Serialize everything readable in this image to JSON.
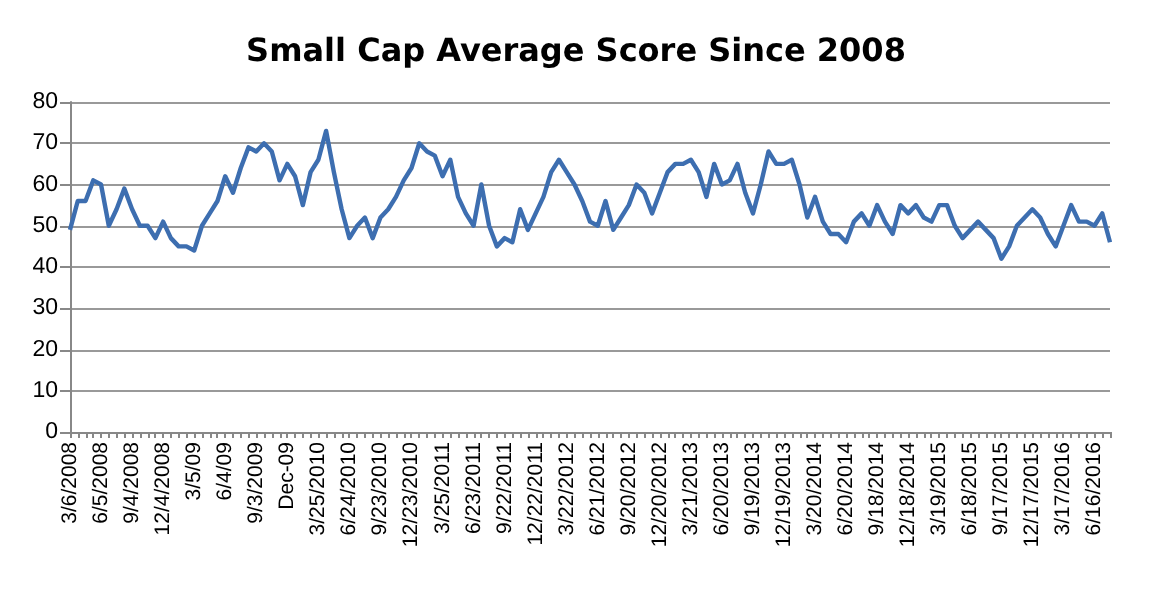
{
  "chart_data": {
    "type": "line",
    "title": "Small Cap Average Score Since 2008",
    "categories": [
      "3/6/2008",
      null,
      null,
      null,
      "6/5/2008",
      null,
      null,
      null,
      "9/4/2008",
      null,
      null,
      null,
      "12/4/2008",
      null,
      null,
      null,
      "3/5/09",
      null,
      null,
      null,
      "6/4/09",
      null,
      null,
      null,
      "9/3/2009",
      null,
      null,
      null,
      "Dec-09",
      null,
      null,
      null,
      "3/25/2010",
      null,
      null,
      null,
      "6/24/2010",
      null,
      null,
      null,
      "9/23/2010",
      null,
      null,
      null,
      "12/23/2010",
      null,
      null,
      null,
      "3/25/2011",
      null,
      null,
      null,
      "6/23/2011",
      null,
      null,
      null,
      "9/22/2011",
      null,
      null,
      null,
      "12/22/2011",
      null,
      null,
      null,
      "3/22/2012",
      null,
      null,
      null,
      "6/21/2012",
      null,
      null,
      null,
      "9/20/2012",
      null,
      null,
      null,
      "12/20/2012",
      null,
      null,
      null,
      "3/21/2013",
      null,
      null,
      null,
      "6/20/2013",
      null,
      null,
      null,
      "9/19/2013",
      null,
      null,
      null,
      "12/19/2013",
      null,
      null,
      null,
      "3/20/2014",
      null,
      null,
      null,
      "6/20/2014",
      null,
      null,
      null,
      "9/18/2014",
      null,
      null,
      null,
      "12/18/2014",
      null,
      null,
      null,
      "3/19/2015",
      null,
      null,
      null,
      "6/18/2015",
      null,
      null,
      null,
      "9/17/2015",
      null,
      null,
      null,
      "12/17/2015",
      null,
      null,
      null,
      "3/17/2016",
      null,
      null,
      null,
      "6/16/2016",
      null,
      null
    ],
    "series": [
      {
        "color": "#3d6eb0",
        "values": [
          49,
          56,
          56,
          61,
          60,
          50,
          54,
          59,
          54,
          50,
          50,
          47,
          51,
          47,
          45,
          45,
          44,
          50,
          53,
          56,
          62,
          58,
          64,
          69,
          68,
          70,
          68,
          61,
          65,
          62,
          55,
          63,
          66,
          73,
          63,
          54,
          47,
          50,
          52,
          47,
          52,
          54,
          57,
          61,
          64,
          70,
          68,
          67,
          62,
          66,
          57,
          53,
          50,
          60,
          50,
          45,
          47,
          46,
          54,
          49,
          53,
          57,
          63,
          66,
          63,
          60,
          56,
          51,
          50,
          56,
          49,
          52,
          55,
          60,
          58,
          53,
          58,
          63,
          65,
          65,
          66,
          63,
          57,
          65,
          60,
          61,
          65,
          58,
          53,
          60,
          68,
          65,
          65,
          66,
          60,
          52,
          57,
          51,
          48,
          48,
          46,
          51,
          53,
          50,
          55,
          51,
          48,
          55,
          53,
          55,
          52,
          51,
          55,
          55,
          50,
          47,
          49,
          51,
          49,
          47,
          42,
          45,
          50,
          52,
          54,
          52,
          48,
          45,
          50,
          55,
          51,
          51,
          50,
          53,
          46
        ]
      }
    ],
    "ylim": [
      0,
      80
    ],
    "yticks": [
      0,
      10,
      20,
      30,
      40,
      50,
      60,
      70,
      80
    ],
    "grid": "y",
    "marker": "none",
    "line_style": "solid"
  }
}
